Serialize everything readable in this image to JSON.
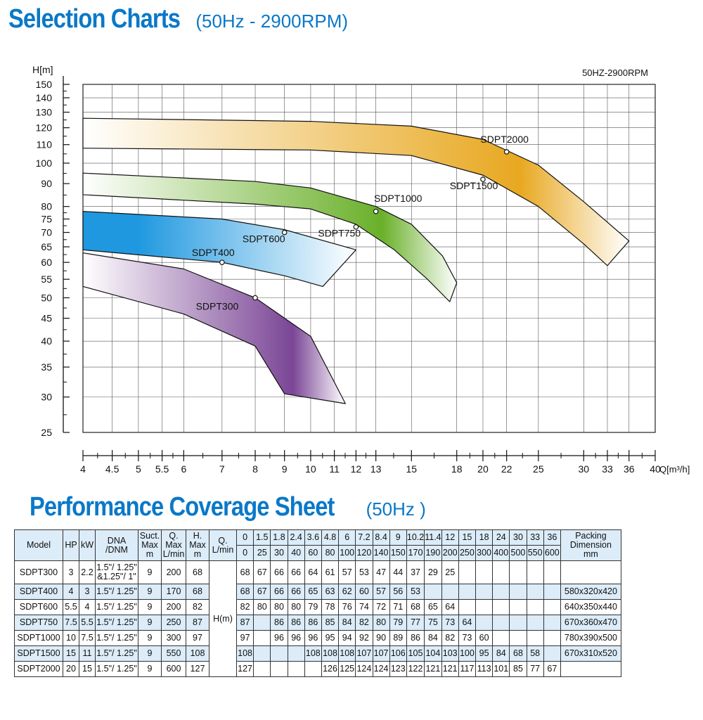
{
  "headings": {
    "chart_title": "Selection Charts",
    "chart_subtitle": "(50Hz - 2900RPM)",
    "table_title": "Performance Coverage Sheet",
    "table_subtitle": "(50Hz )"
  },
  "chart_data": {
    "type": "area",
    "annotation": "50HZ-2900RPM",
    "ylabel": "H[m]",
    "xlabel": "Q[m³/h]",
    "ylim": [
      25,
      150
    ],
    "xlim": [
      4,
      40
    ],
    "yscale": "log",
    "xscale": "log",
    "yticks": [
      25,
      30,
      35,
      40,
      45,
      50,
      55,
      60,
      65,
      70,
      75,
      80,
      90,
      100,
      110,
      120,
      130,
      140,
      150
    ],
    "xticks": [
      4,
      4.5,
      5,
      5.5,
      6,
      7,
      8,
      9,
      10,
      11,
      12,
      13,
      15,
      18,
      20,
      22,
      25,
      30,
      33,
      36,
      40
    ],
    "grid": true,
    "bands": [
      {
        "colors": [
          "#ffffff",
          "#e8a820"
        ],
        "dir": "right",
        "upper": [
          [
            4,
            126
          ],
          [
            10,
            124
          ],
          [
            15,
            121
          ],
          [
            20,
            113
          ],
          [
            25,
            99
          ],
          [
            30,
            82
          ],
          [
            36,
            67
          ]
        ],
        "lower": [
          [
            4,
            108
          ],
          [
            10,
            107
          ],
          [
            15,
            104
          ],
          [
            20,
            94
          ],
          [
            25,
            80
          ],
          [
            30,
            66
          ],
          [
            33,
            59
          ]
        ]
      },
      {
        "colors": [
          "#ffffff",
          "#6ab02a"
        ],
        "dir": "right",
        "upper": [
          [
            4,
            95
          ],
          [
            8,
            91
          ],
          [
            10,
            88
          ],
          [
            13,
            80
          ],
          [
            15,
            73
          ],
          [
            17,
            62
          ],
          [
            18,
            54
          ]
        ],
        "lower": [
          [
            4,
            85
          ],
          [
            8,
            81
          ],
          [
            10,
            79
          ],
          [
            12,
            73
          ],
          [
            14,
            64
          ],
          [
            16,
            55
          ],
          [
            17.5,
            49
          ]
        ]
      },
      {
        "colors": [
          "#ffffff",
          "#1f98e0"
        ],
        "dir": "left",
        "upper": [
          [
            4,
            78
          ],
          [
            7,
            75
          ],
          [
            9,
            71
          ],
          [
            12,
            64
          ]
        ],
        "lower": [
          [
            4,
            64
          ],
          [
            7,
            60
          ],
          [
            9,
            56
          ],
          [
            10.5,
            53
          ]
        ]
      },
      {
        "colors": [
          "#ffffff",
          "#7b4696"
        ],
        "dir": "right",
        "upper": [
          [
            4,
            63
          ],
          [
            6,
            58
          ],
          [
            8,
            50
          ],
          [
            10,
            41
          ],
          [
            11.5,
            29
          ]
        ],
        "lower": [
          [
            4,
            53
          ],
          [
            6,
            46
          ],
          [
            8,
            39
          ],
          [
            9,
            30.5
          ],
          [
            11.5,
            29
          ]
        ]
      }
    ],
    "points": [
      {
        "name": "SDPT2000",
        "x": 22,
        "y": 106,
        "lx": 19.8,
        "ly": 111
      },
      {
        "name": "SDPT1500",
        "x": 20,
        "y": 92,
        "lx": 17.5,
        "ly": 87.5
      },
      {
        "name": "SDPT1000",
        "x": 13,
        "y": 78,
        "lx": 12.9,
        "ly": 82
      },
      {
        "name": "SDPT750",
        "x": 12,
        "y": 72,
        "lx": 10.3,
        "ly": 68.5
      },
      {
        "name": "SDPT600",
        "x": 9,
        "y": 70,
        "lx": 7.6,
        "ly": 66.5
      },
      {
        "name": "SDPT400",
        "x": 7,
        "y": 60,
        "lx": 6.2,
        "ly": 62
      },
      {
        "name": "SDPT300",
        "x": 8,
        "y": 50,
        "lx": 6.3,
        "ly": 47
      }
    ]
  },
  "table": {
    "head": {
      "model": "Model",
      "hp": "HP",
      "kw": "kW",
      "dna": "DNA\n/DNM",
      "suct": "Suct.\nMax\nm",
      "qmax": "Q.\nMax\nL/min",
      "hmax": "H.\nMax\nm",
      "q": "Q.\nL/min",
      "hm": "H(m)",
      "packing": "Packing\nDimension\nmm",
      "q_m3h": [
        "0",
        "1.5",
        "1.8",
        "2.4",
        "3.6",
        "4.8",
        "6",
        "7.2",
        "8.4",
        "9",
        "10.2",
        "11.4",
        "12",
        "15",
        "18",
        "24",
        "30",
        "33",
        "36"
      ],
      "q_lmin": [
        "0",
        "25",
        "30",
        "40",
        "60",
        "80",
        "100",
        "120",
        "140",
        "150",
        "170",
        "190",
        "200",
        "250",
        "300",
        "400",
        "500",
        "550",
        "600"
      ]
    },
    "rows": [
      {
        "model": "SDPT300",
        "hp": "3",
        "kw": "2.2",
        "dna": "1.5\"/ 1.25\"\n&1.25\"/ 1\"",
        "suct": "9",
        "qmax": "200",
        "hmax": "68",
        "h": [
          "68",
          "67",
          "66",
          "66",
          "64",
          "61",
          "57",
          "53",
          "47",
          "44",
          "37",
          "29",
          "25",
          "",
          "",
          "",
          "",
          "",
          ""
        ],
        "pack": ""
      },
      {
        "model": "SDPT400",
        "hp": "4",
        "kw": "3",
        "dna": "1.5\"/ 1.25\"",
        "suct": "9",
        "qmax": "170",
        "hmax": "68",
        "h": [
          "68",
          "67",
          "66",
          "66",
          "65",
          "63",
          "62",
          "60",
          "57",
          "56",
          "53",
          "",
          "",
          "",
          "",
          "",
          "",
          "",
          ""
        ],
        "pack": "580x320x420"
      },
      {
        "model": "SDPT600",
        "hp": "5.5",
        "kw": "4",
        "dna": "1.5\"/ 1.25\"",
        "suct": "9",
        "qmax": "200",
        "hmax": "82",
        "h": [
          "82",
          "80",
          "80",
          "80",
          "79",
          "78",
          "76",
          "74",
          "72",
          "71",
          "68",
          "65",
          "64",
          "",
          "",
          "",
          "",
          "",
          ""
        ],
        "pack": "640x350x440"
      },
      {
        "model": "SDPT750",
        "hp": "7.5",
        "kw": "5.5",
        "dna": "1.5\"/ 1.25\"",
        "suct": "9",
        "qmax": "250",
        "hmax": "87",
        "h": [
          "87",
          "",
          "86",
          "86",
          "86",
          "85",
          "84",
          "82",
          "80",
          "79",
          "77",
          "75",
          "73",
          "64",
          "",
          "",
          "",
          "",
          ""
        ],
        "pack": "670x360x470"
      },
      {
        "model": "SDPT1000",
        "hp": "10",
        "kw": "7.5",
        "dna": "1.5\"/ 1.25\"",
        "suct": "9",
        "qmax": "300",
        "hmax": "97",
        "h": [
          "97",
          "",
          "96",
          "96",
          "96",
          "95",
          "94",
          "92",
          "90",
          "89",
          "86",
          "84",
          "82",
          "73",
          "60",
          "",
          "",
          "",
          ""
        ],
        "pack": "780x390x500"
      },
      {
        "model": "SDPT1500",
        "hp": "15",
        "kw": "11",
        "dna": "1.5\"/ 1.25\"",
        "suct": "9",
        "qmax": "550",
        "hmax": "108",
        "h": [
          "108",
          "",
          "",
          "",
          "108",
          "108",
          "108",
          "107",
          "107",
          "106",
          "105",
          "104",
          "103",
          "100",
          "95",
          "84",
          "68",
          "58",
          ""
        ],
        "pack": "670x310x520"
      },
      {
        "model": "SDPT2000",
        "hp": "20",
        "kw": "15",
        "dna": "1.5\"/ 1.25\"",
        "suct": "9",
        "qmax": "600",
        "hmax": "127",
        "h": [
          "127",
          "",
          "",
          "",
          "",
          "126",
          "125",
          "124",
          "124",
          "123",
          "122",
          "121",
          "121",
          "117",
          "113",
          "101",
          "85",
          "77",
          "67"
        ],
        "pack": ""
      }
    ]
  }
}
